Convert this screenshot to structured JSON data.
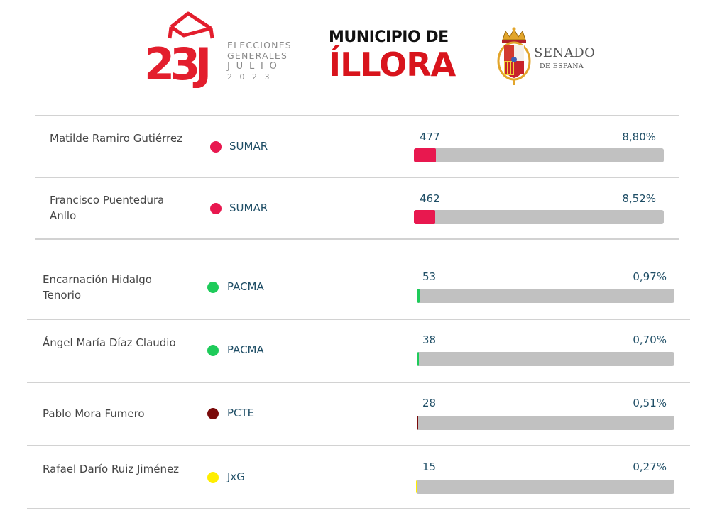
{
  "header": {
    "logo": {
      "mark": "23J",
      "line1": "ELECCIONES",
      "line2": "GENERALES",
      "line3": "JULIO",
      "line4": "2023",
      "color": "#e31e2d"
    },
    "municipality": {
      "prefix": "MUNICIPIO DE",
      "name": "ÍLLORA"
    },
    "institution": {
      "name": "SENADO",
      "country": "DE ESPAÑA",
      "icon": "coat-of-arms-icon"
    }
  },
  "party_colors": {
    "SUMAR": "#e8184f",
    "PACMA": "#1ecb5a",
    "PCTE": "#7a0a0a",
    "JxG": "#ffee00"
  },
  "candidates": [
    {
      "name": "Matilde Ramiro Gutiérrez",
      "party": "SUMAR",
      "votes": "477",
      "pct_label": "8,80%",
      "pct": 8.8
    },
    {
      "name": "Francisco Puentedura Anllo",
      "party": "SUMAR",
      "votes": "462",
      "pct_label": "8,52%",
      "pct": 8.52
    },
    {
      "name": "Encarnación Hidalgo Tenorio",
      "party": "PACMA",
      "votes": "53",
      "pct_label": "0,97%",
      "pct": 0.97
    },
    {
      "name": "Ángel María Díaz Claudio",
      "party": "PACMA",
      "votes": "38",
      "pct_label": "0,70%",
      "pct": 0.7
    },
    {
      "name": "Pablo Mora Fumero",
      "party": "PCTE",
      "votes": "28",
      "pct_label": "0,51%",
      "pct": 0.51
    },
    {
      "name": "Rafael Darío Ruiz Jiménez",
      "party": "JxG",
      "votes": "15",
      "pct_label": "0,27%",
      "pct": 0.27
    }
  ]
}
